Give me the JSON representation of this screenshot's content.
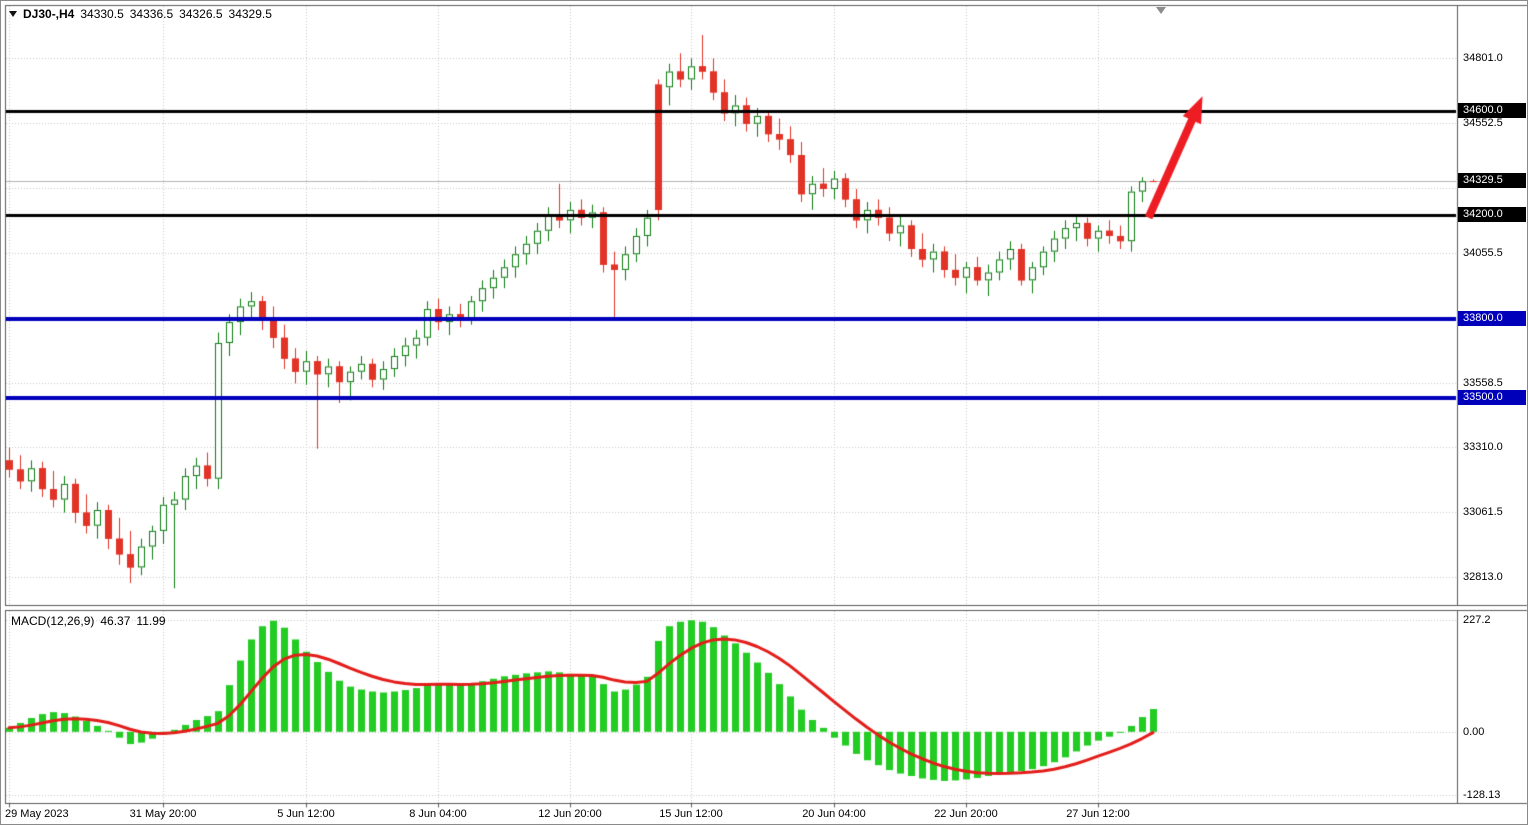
{
  "header": {
    "symbol_period": "DJ30-,H4",
    "open": "34330.5",
    "high": "34336.5",
    "low": "34326.5",
    "close": "34329.5"
  },
  "macd_header": {
    "label": "MACD(12,26,9)",
    "main": "46.37",
    "signal": "11.99"
  },
  "colors": {
    "bull": "#0d7d12",
    "bear": "#e23327",
    "hist": "#22cc22",
    "signal": "#e31d1a",
    "grid": "#c9c9c9",
    "frame": "#5a5a5a",
    "current_line": "#b4b4b4",
    "black_line": "#000000",
    "blue_line": "#0000bb",
    "arrow": "#ee1c23",
    "label_text": "#ffffff",
    "background": "#ffffff"
  },
  "chart_data": [
    {
      "type": "candlestick",
      "title": "DJ30- H4",
      "ylim": [
        32706,
        35005
      ],
      "y_gridlines": [
        34801.0,
        34552.5,
        34304.0,
        34055.5,
        33807.0,
        33558.5,
        33310.0,
        33061.5,
        32813.0
      ],
      "y_ticks": [
        {
          "text": "34801.0",
          "value": 34801.0
        },
        {
          "text": "34552.5",
          "value": 34552.5
        },
        {
          "text": "34055.5",
          "value": 34055.5
        },
        {
          "text": "33558.5",
          "value": 33558.5
        },
        {
          "text": "33310.0",
          "value": 33310.0
        },
        {
          "text": "33061.5",
          "value": 33061.5
        },
        {
          "text": "32813.0",
          "value": 32813.0
        }
      ],
      "x_ticks": [
        {
          "text": "29 May 2023",
          "index": 0
        },
        {
          "text": "31 May 20:00",
          "index": 14
        },
        {
          "text": "5 Jun 12:00",
          "index": 27
        },
        {
          "text": "8 Jun 04:00",
          "index": 39
        },
        {
          "text": "12 Jun 20:00",
          "index": 51
        },
        {
          "text": "15 Jun 12:00",
          "index": 62
        },
        {
          "text": "20 Jun 04:00",
          "index": 75
        },
        {
          "text": "22 Jun 20:00",
          "index": 87
        },
        {
          "text": "27 Jun 12:00",
          "index": 99
        }
      ],
      "hlines": [
        {
          "text": "34600.0",
          "value": 34600.0,
          "color": "#000000",
          "width": 3
        },
        {
          "text": "34200.0",
          "value": 34200.0,
          "color": "#000000",
          "width": 3
        },
        {
          "text": "33800.0",
          "value": 33800.0,
          "color": "#0000bb",
          "width": 4
        },
        {
          "text": "33500.0",
          "value": 33500.0,
          "color": "#0000bb",
          "width": 4
        }
      ],
      "current_price": {
        "text": "34329.5",
        "value": 34329.5
      },
      "annotations": [
        {
          "type": "arrow",
          "color": "#ee1c23",
          "from": {
            "index": 103.6,
            "price": 34190
          },
          "to": {
            "index": 108.5,
            "price": 34655
          }
        }
      ],
      "ohlc": [
        [
          33260,
          33310,
          33195,
          33225
        ],
        [
          33225,
          33280,
          33150,
          33180
        ],
        [
          33180,
          33260,
          33140,
          33230
        ],
        [
          33230,
          33255,
          33120,
          33150
        ],
        [
          33150,
          33220,
          33080,
          33110
        ],
        [
          33110,
          33200,
          33060,
          33170
        ],
        [
          33170,
          33190,
          33020,
          33060
        ],
        [
          33060,
          33130,
          32980,
          33010
        ],
        [
          33010,
          33100,
          32960,
          33070
        ],
        [
          33070,
          33090,
          32920,
          32960
        ],
        [
          32960,
          33040,
          32860,
          32900
        ],
        [
          32900,
          32990,
          32790,
          32850
        ],
        [
          32850,
          32960,
          32820,
          32930
        ],
        [
          32930,
          33010,
          32880,
          32990
        ],
        [
          32990,
          33120,
          32940,
          33090
        ],
        [
          33090,
          33140,
          32770,
          33110
        ],
        [
          33110,
          33230,
          33070,
          33200
        ],
        [
          33200,
          33270,
          33150,
          33240
        ],
        [
          33240,
          33290,
          33160,
          33190
        ],
        [
          33190,
          33750,
          33150,
          33710
        ],
        [
          33710,
          33820,
          33660,
          33790
        ],
        [
          33790,
          33880,
          33740,
          33850
        ],
        [
          33850,
          33905,
          33800,
          33870
        ],
        [
          33870,
          33890,
          33760,
          33800
        ],
        [
          33800,
          33850,
          33690,
          33730
        ],
        [
          33730,
          33780,
          33610,
          33650
        ],
        [
          33650,
          33690,
          33555,
          33600
        ],
        [
          33600,
          33680,
          33550,
          33640
        ],
        [
          33640,
          33660,
          33305,
          33590
        ],
        [
          33590,
          33650,
          33540,
          33620
        ],
        [
          33620,
          33640,
          33480,
          33560
        ],
        [
          33560,
          33620,
          33490,
          33600
        ],
        [
          33600,
          33660,
          33570,
          33630
        ],
        [
          33630,
          33650,
          33540,
          33570
        ],
        [
          33570,
          33640,
          33530,
          33610
        ],
        [
          33610,
          33690,
          33580,
          33660
        ],
        [
          33660,
          33730,
          33620,
          33700
        ],
        [
          33700,
          33760,
          33650,
          33730
        ],
        [
          33730,
          33870,
          33700,
          33840
        ],
        [
          33840,
          33880,
          33760,
          33790
        ],
        [
          33790,
          33850,
          33740,
          33820
        ],
        [
          33820,
          33860,
          33770,
          33800
        ],
        [
          33800,
          33890,
          33780,
          33870
        ],
        [
          33870,
          33950,
          33830,
          33920
        ],
        [
          33920,
          33990,
          33880,
          33960
        ],
        [
          33960,
          34030,
          33920,
          34000
        ],
        [
          34000,
          34080,
          33960,
          34050
        ],
        [
          34050,
          34120,
          34010,
          34090
        ],
        [
          34090,
          34170,
          34050,
          34140
        ],
        [
          34140,
          34230,
          34100,
          34200
        ],
        [
          34200,
          34320,
          34150,
          34180
        ],
        [
          34180,
          34250,
          34130,
          34220
        ],
        [
          34220,
          34260,
          34160,
          34190
        ],
        [
          34190,
          34240,
          34150,
          34210
        ],
        [
          34210,
          34230,
          33980,
          34010
        ],
        [
          34010,
          34060,
          33810,
          33990
        ],
        [
          33990,
          34080,
          33950,
          34050
        ],
        [
          34050,
          34150,
          34020,
          34120
        ],
        [
          34120,
          34220,
          34080,
          34190
        ],
        [
          34700,
          34720,
          34180,
          34220
        ],
        [
          34690,
          34780,
          34620,
          34750
        ],
        [
          34750,
          34820,
          34690,
          34720
        ],
        [
          34720,
          34800,
          34680,
          34770
        ],
        [
          34770,
          34890,
          34720,
          34750
        ],
        [
          34750,
          34800,
          34640,
          34670
        ],
        [
          34670,
          34720,
          34560,
          34590
        ],
        [
          34590,
          34660,
          34540,
          34620
        ],
        [
          34620,
          34650,
          34520,
          34550
        ],
        [
          34550,
          34610,
          34500,
          34580
        ],
        [
          34580,
          34600,
          34480,
          34510
        ],
        [
          34510,
          34570,
          34450,
          34490
        ],
        [
          34490,
          34540,
          34400,
          34430
        ],
        [
          34430,
          34480,
          34250,
          34280
        ],
        [
          34280,
          34350,
          34220,
          34320
        ],
        [
          34320,
          34380,
          34270,
          34300
        ],
        [
          34300,
          34370,
          34260,
          34340
        ],
        [
          34340,
          34360,
          34230,
          34260
        ],
        [
          34260,
          34300,
          34150,
          34180
        ],
        [
          34180,
          34250,
          34130,
          34220
        ],
        [
          34220,
          34260,
          34160,
          34190
        ],
        [
          34190,
          34230,
          34100,
          34130
        ],
        [
          34130,
          34200,
          34080,
          34160
        ],
        [
          34160,
          34180,
          34040,
          34070
        ],
        [
          34070,
          34130,
          34000,
          34030
        ],
        [
          34030,
          34090,
          33980,
          34060
        ],
        [
          34060,
          34080,
          33960,
          33990
        ],
        [
          33990,
          34050,
          33930,
          33960
        ],
        [
          33960,
          34020,
          33900,
          34000
        ],
        [
          34000,
          34040,
          33930,
          33950
        ],
        [
          33950,
          34010,
          33890,
          33980
        ],
        [
          33980,
          34060,
          33950,
          34030
        ],
        [
          34030,
          34100,
          33990,
          34070
        ],
        [
          34070,
          34090,
          33930,
          33950
        ],
        [
          33950,
          34020,
          33900,
          34000
        ],
        [
          34000,
          34080,
          33970,
          34060
        ],
        [
          34060,
          34140,
          34020,
          34110
        ],
        [
          34110,
          34180,
          34070,
          34150
        ],
        [
          34150,
          34200,
          34100,
          34170
        ],
        [
          34170,
          34190,
          34080,
          34110
        ],
        [
          34110,
          34160,
          34060,
          34140
        ],
        [
          34140,
          34180,
          34090,
          34120
        ],
        [
          34120,
          34160,
          34070,
          34100
        ],
        [
          34100,
          34310,
          34060,
          34290
        ],
        [
          34290,
          34345,
          34250,
          34330
        ],
        [
          34330.5,
          34336.5,
          34326.5,
          34329.5
        ]
      ]
    },
    {
      "type": "bar",
      "title": "MACD(12,26,9)",
      "ylim": [
        -145,
        248
      ],
      "y_ticks": [
        {
          "text": "227.2",
          "value": 227.2
        },
        {
          "text": "0.00",
          "value": 0
        },
        {
          "text": "-128.13",
          "value": -128.13
        }
      ],
      "displayed_main_value": 46.37,
      "signal": {
        "type": "line",
        "derivation": "EMA(9) of values",
        "displayed_value": 11.99
      },
      "values": [
        8,
        18,
        28,
        36,
        40,
        38,
        31,
        22,
        12,
        2,
        -12,
        -25,
        -22,
        -14,
        -5,
        4,
        14,
        24,
        32,
        42,
        95,
        145,
        188,
        215,
        226,
        212,
        188,
        163,
        142,
        122,
        104,
        92,
        86,
        82,
        80,
        82,
        85,
        89,
        96,
        99,
        97,
        95,
        98,
        103,
        108,
        113,
        116,
        119,
        121,
        123,
        121,
        118,
        115,
        112,
        97,
        82,
        86,
        96,
        112,
        185,
        215,
        224,
        227,
        224,
        213,
        196,
        180,
        161,
        141,
        120,
        97,
        72,
        45,
        24,
        8,
        -12,
        -28,
        -45,
        -58,
        -68,
        -78,
        -85,
        -90,
        -95,
        -98,
        -100,
        -99,
        -97,
        -94,
        -90,
        -86,
        -83,
        -80,
        -76,
        -70,
        -62,
        -52,
        -40,
        -28,
        -18,
        -10,
        -2,
        12,
        30,
        46.37
      ]
    }
  ]
}
